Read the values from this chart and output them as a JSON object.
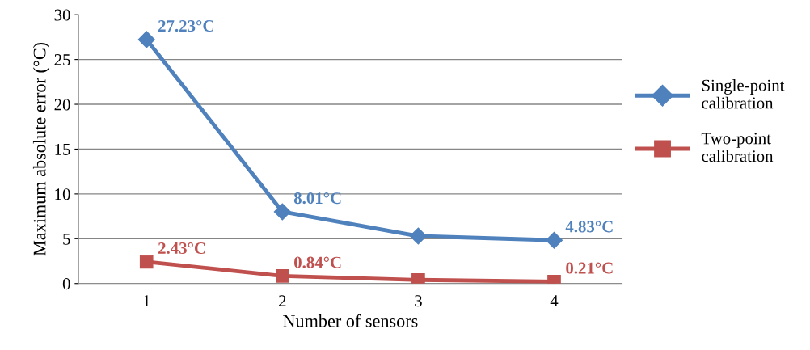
{
  "chart_data": {
    "type": "line",
    "xlabel": "Number of sensors",
    "ylabel": "Maximum absolute error (°C)",
    "categories": [
      "1",
      "2",
      "3",
      "4"
    ],
    "ylim": [
      0,
      30
    ],
    "yticks": [
      0,
      5,
      10,
      15,
      20,
      25,
      30
    ],
    "grid": "y",
    "legend": "right",
    "series": [
      {
        "name": "Single-point calibration",
        "color": "#4f81bd",
        "marker": "diamond",
        "values": [
          27.23,
          8.01,
          5.3,
          4.83
        ],
        "value_labels": [
          "27.23°C",
          "8.01°C",
          null,
          "4.83°C"
        ]
      },
      {
        "name": "Two-point calibration",
        "color": "#c0504d",
        "marker": "square",
        "values": [
          2.43,
          0.84,
          0.4,
          0.21
        ],
        "value_labels": [
          "2.43°C",
          "0.84°C",
          null,
          "0.21°C"
        ]
      }
    ]
  }
}
